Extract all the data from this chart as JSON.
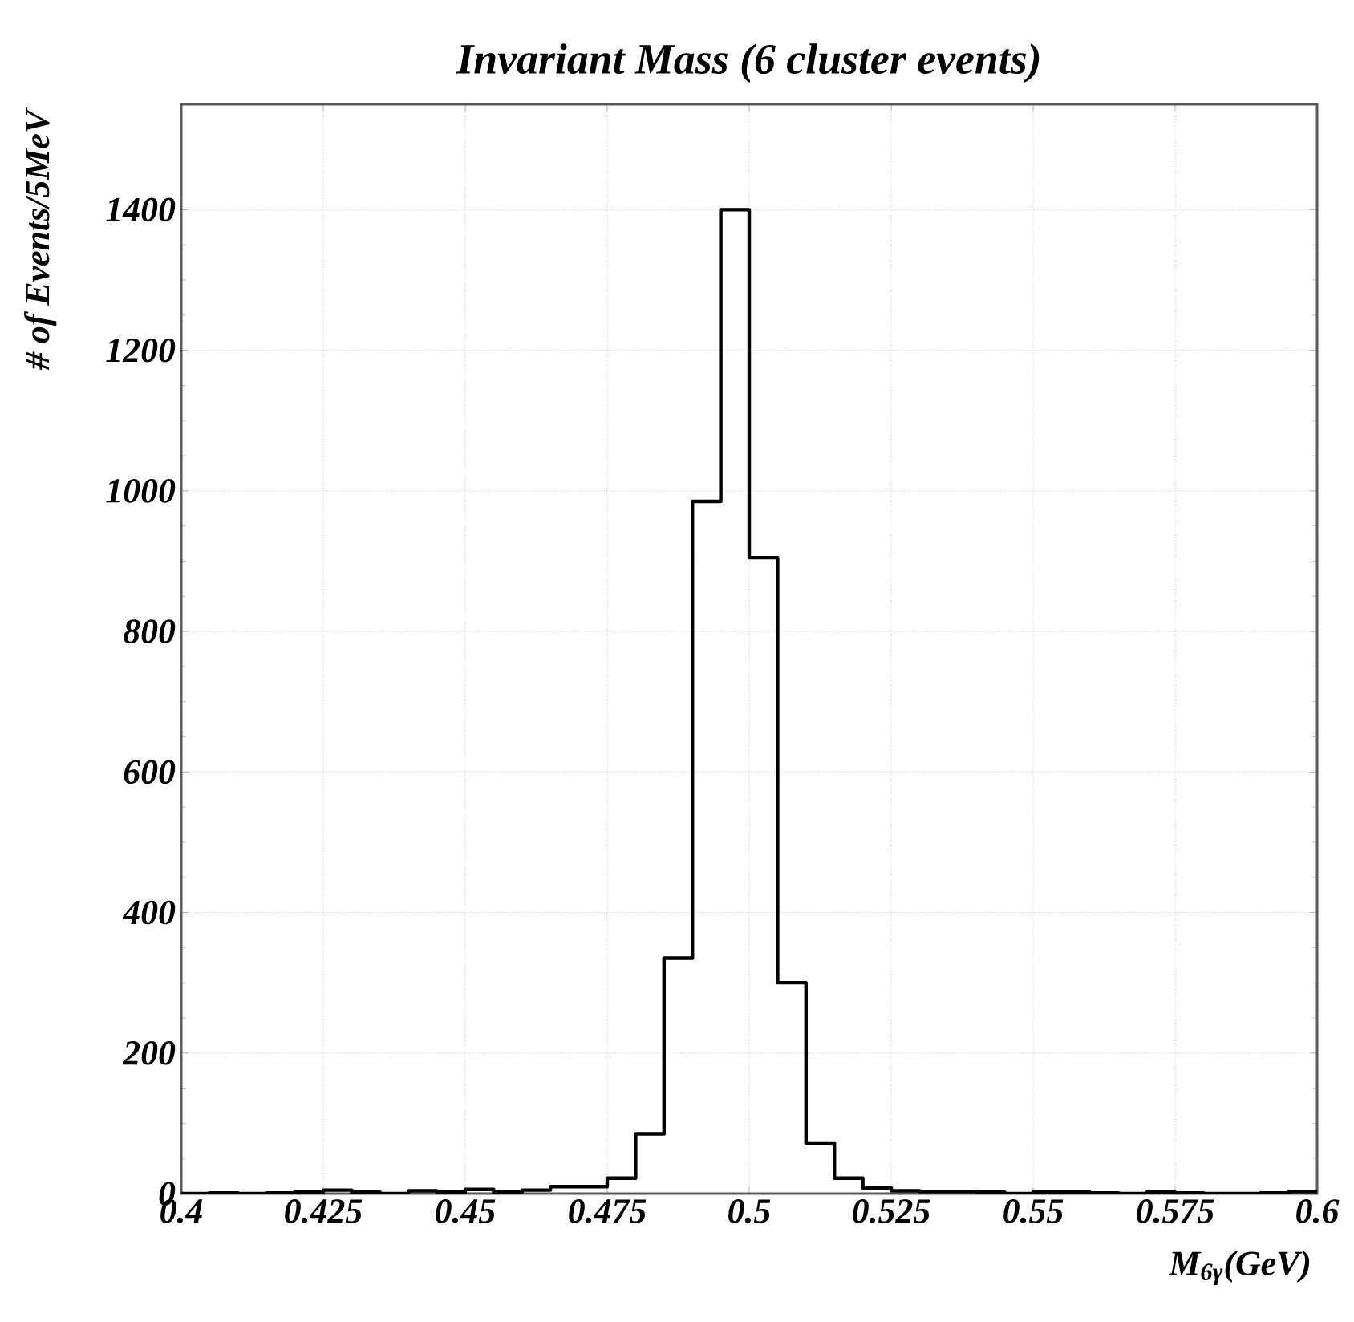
{
  "chart_data": {
    "type": "histogram",
    "title": "Invariant Mass (6 cluster events)",
    "xlabel": "M$_{6γ}$(GeV)",
    "ylabel": "# of Events/5MeV",
    "bins": [
      0.4,
      0.405,
      0.41,
      0.415,
      0.42,
      0.425,
      0.43,
      0.435,
      0.44,
      0.445,
      0.45,
      0.455,
      0.46,
      0.465,
      0.47,
      0.475,
      0.48,
      0.485,
      0.49,
      0.495,
      0.5,
      0.505,
      0.51,
      0.515,
      0.52,
      0.525,
      0.53,
      0.535,
      0.54,
      0.545,
      0.55,
      0.555,
      0.56,
      0.565,
      0.57,
      0.575,
      0.58,
      0.585,
      0.59,
      0.595,
      0.6
    ],
    "values": [
      0,
      1,
      0,
      1,
      2,
      5,
      2,
      0,
      4,
      2,
      6,
      2,
      5,
      10,
      10,
      22,
      85,
      335,
      985,
      1400,
      905,
      300,
      72,
      22,
      8,
      4,
      3,
      3,
      2,
      0,
      2,
      2,
      1,
      0,
      2,
      1,
      0,
      0,
      1,
      3
    ],
    "color": "#000000",
    "xlim": [
      0.4,
      0.6
    ],
    "ylim": [
      0,
      1550
    ],
    "xticks": [
      0.4,
      0.425,
      0.45,
      0.475,
      0.5,
      0.525,
      0.55,
      0.575,
      0.6
    ],
    "yticks": [
      0,
      200,
      400,
      600,
      800,
      1000,
      1200,
      1400
    ],
    "grid": true
  }
}
